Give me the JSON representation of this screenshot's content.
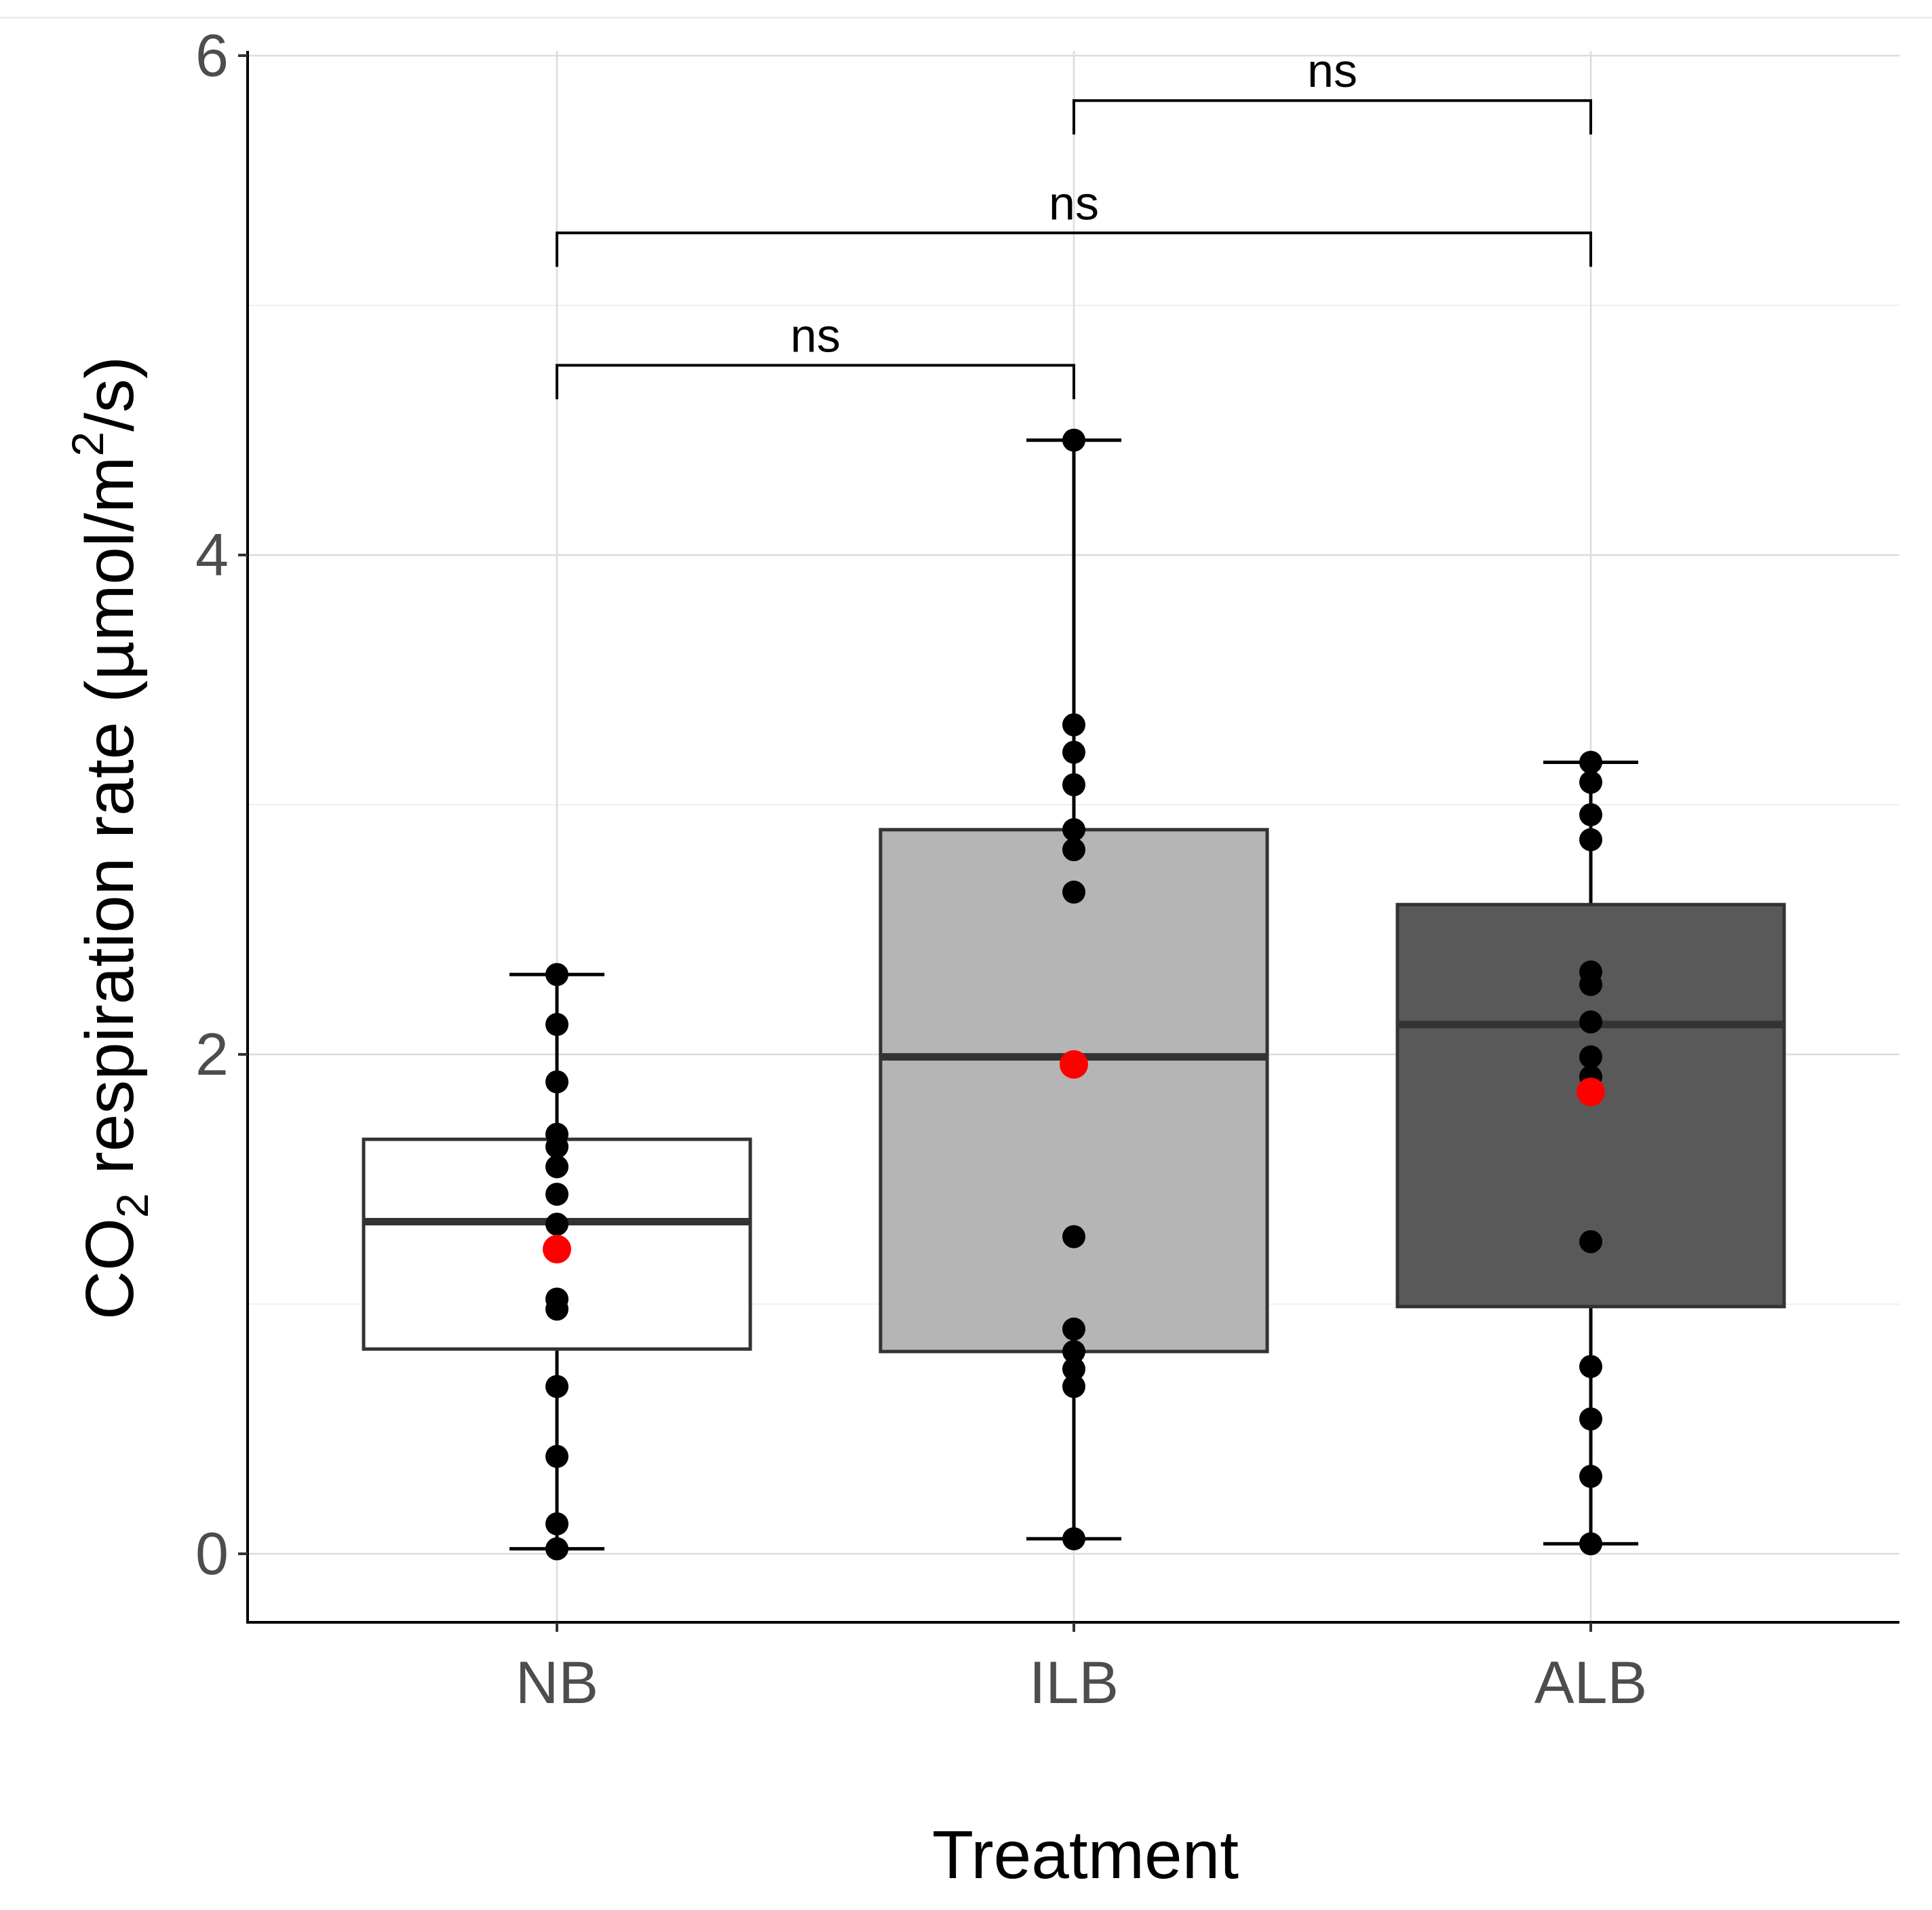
{
  "chart_data": {
    "type": "box",
    "xlabel": "Treatment",
    "ylabel": {
      "prefix": "CO",
      "subscript": "2",
      "middle": " respiration rate (µmol/m",
      "superscript": "2",
      "suffix": "/s)"
    },
    "ylim": [
      -0.27,
      6.05
    ],
    "yticks": [
      0,
      2,
      4,
      6
    ],
    "ytick_labels": [
      "0",
      "2",
      "4",
      "6"
    ],
    "grid": true,
    "categories": [
      "NB",
      "ILB",
      "ALB"
    ],
    "boxes": [
      {
        "category": "NB",
        "fill": "#ffffff",
        "q1": 0.82,
        "median": 1.33,
        "q3": 1.66,
        "whisker_low": 0.02,
        "whisker_high": 2.32,
        "mean": 1.22,
        "points": [
          2.32,
          2.12,
          1.89,
          1.68,
          1.63,
          1.55,
          1.44,
          1.32,
          1.02,
          0.98,
          0.67,
          0.39,
          0.12,
          0.02
        ]
      },
      {
        "category": "ILB",
        "fill": "#b5b5b5",
        "q1": 0.81,
        "median": 1.99,
        "q3": 2.9,
        "whisker_low": 0.06,
        "whisker_high": 4.46,
        "mean": 1.96,
        "points": [
          4.46,
          3.32,
          3.21,
          3.08,
          2.9,
          2.82,
          2.65,
          1.27,
          0.9,
          0.81,
          0.74,
          0.67,
          0.06
        ]
      },
      {
        "category": "ALB",
        "fill": "#595959",
        "q1": 0.99,
        "median": 2.12,
        "q3": 2.6,
        "whisker_low": 0.04,
        "whisker_high": 3.17,
        "mean": 1.85,
        "points": [
          3.17,
          3.09,
          2.96,
          2.86,
          2.33,
          2.28,
          2.13,
          1.99,
          1.91,
          1.25,
          0.75,
          0.54,
          0.31,
          0.04
        ]
      }
    ],
    "mean_color": "#ff0000",
    "point_color": "#000000",
    "comparisons": [
      {
        "from": "ILB",
        "to": "ALB",
        "y": 5.82,
        "label": "ns"
      },
      {
        "from": "NB",
        "to": "ALB",
        "y": 5.29,
        "label": "ns"
      },
      {
        "from": "NB",
        "to": "ILB",
        "y": 4.76,
        "label": "ns"
      }
    ]
  }
}
